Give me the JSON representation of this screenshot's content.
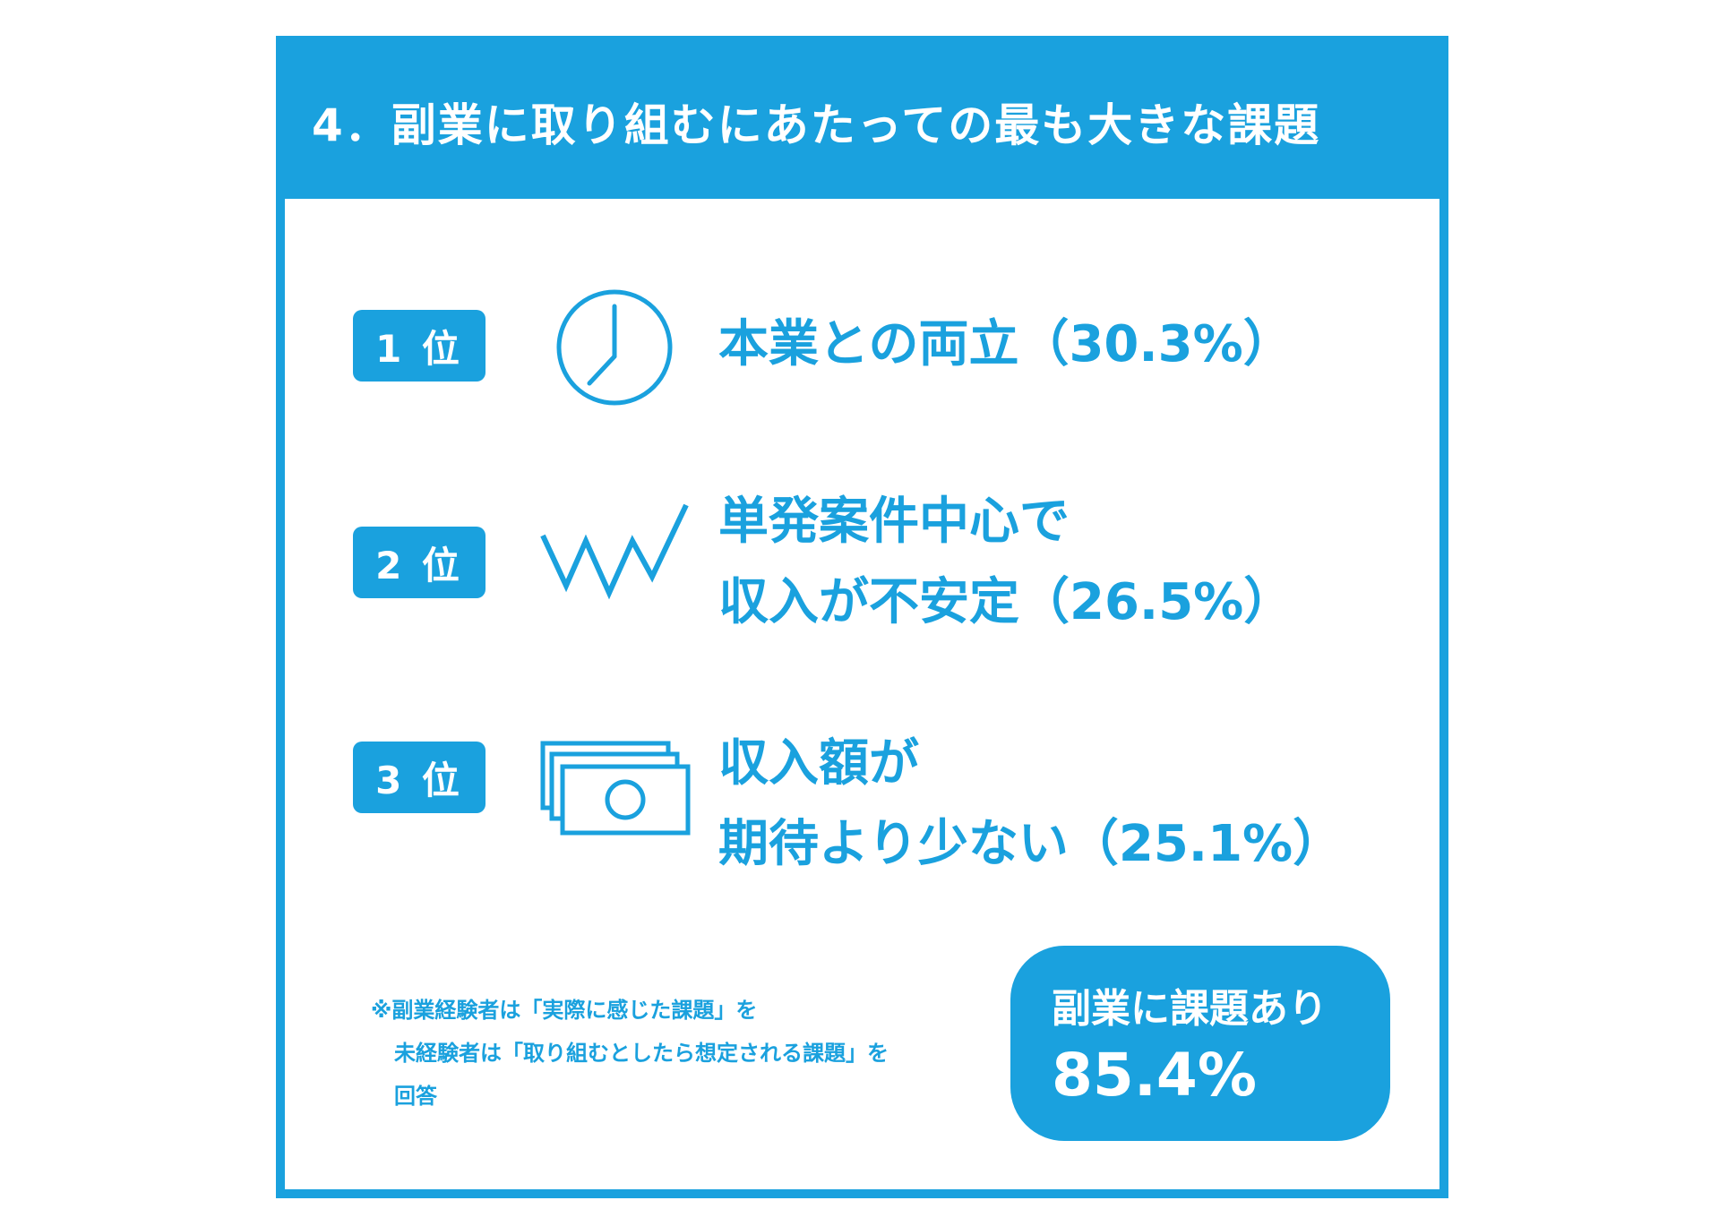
{
  "title": "4．副業に取り組むにあたっての最も大きな課題",
  "ranks": [
    {
      "badge": "1 位",
      "icon": "clock-icon",
      "lines": [
        "本業との両立（30.3%）"
      ],
      "percent": 30.3
    },
    {
      "badge": "2 位",
      "icon": "zigzag-icon",
      "lines": [
        "単発案件中心で",
        "収入が不安定（26.5%）"
      ],
      "percent": 26.5
    },
    {
      "badge": "3 位",
      "icon": "banknotes-icon",
      "lines": [
        "収入額が",
        "期待より少ない（25.1%）"
      ],
      "percent": 25.1
    }
  ],
  "footnote": {
    "line1": "※副業経験者は「実際に感じた課題」を",
    "line2": "未経験者は「取り組むとしたら想定される課題」を",
    "line3": "回答"
  },
  "summary": {
    "label": "副業に課題あり",
    "value": "85.4%"
  },
  "colors": {
    "accent": "#1aa1de",
    "background": "#ffffff"
  }
}
